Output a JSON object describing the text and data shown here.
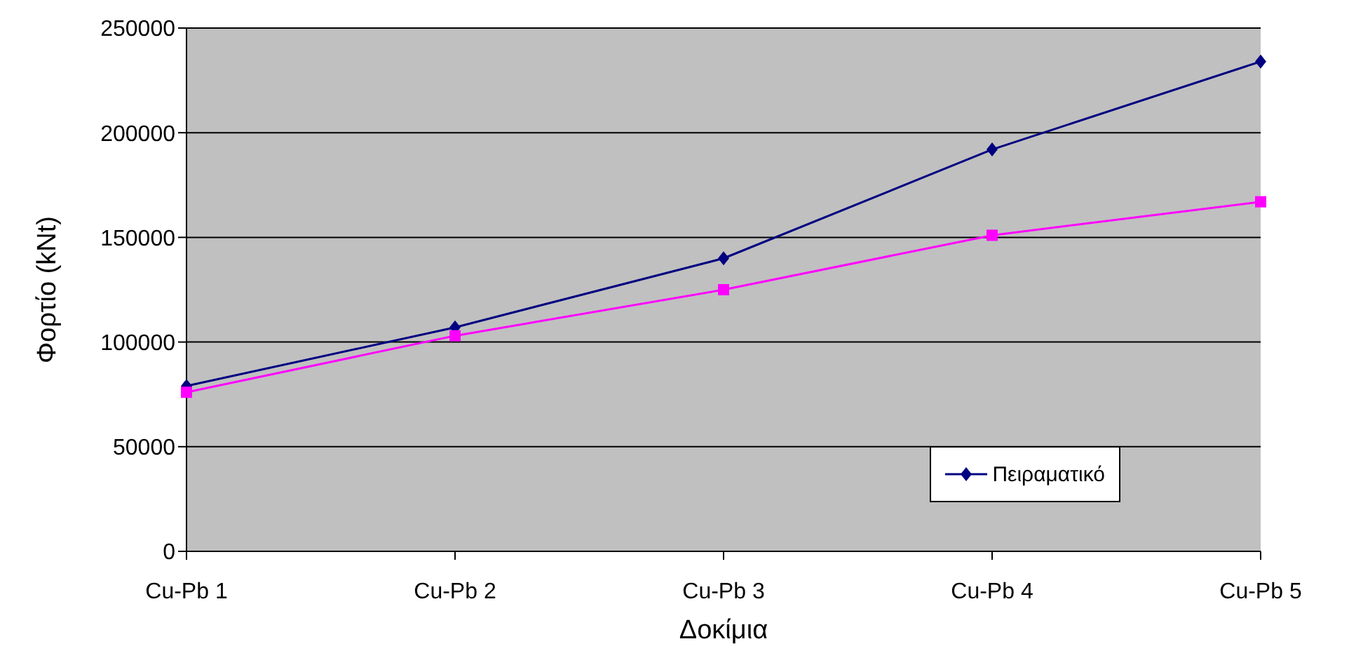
{
  "chart_data": {
    "type": "line",
    "xlabel": "Δοκίμια",
    "ylabel": "Φορτίο (kNt)",
    "categories": [
      "Cu-Pb 1",
      "Cu-Pb 2",
      "Cu-Pb 3",
      "Cu-Pb 4",
      "Cu-Pb 5"
    ],
    "series": [
      {
        "name": "Πειραματικό",
        "color": "#000080",
        "marker": "diamond",
        "values": [
          79000,
          107000,
          140000,
          192000,
          234000
        ]
      },
      {
        "color": "#ff00ff",
        "marker": "square",
        "values": [
          76000,
          103000,
          125000,
          151000,
          167000
        ]
      }
    ],
    "ylim": [
      0,
      250000
    ],
    "yticks": [
      0,
      50000,
      100000,
      150000,
      200000,
      250000
    ],
    "grid": "y",
    "legend": "bottom right",
    "line_style": "solid"
  }
}
